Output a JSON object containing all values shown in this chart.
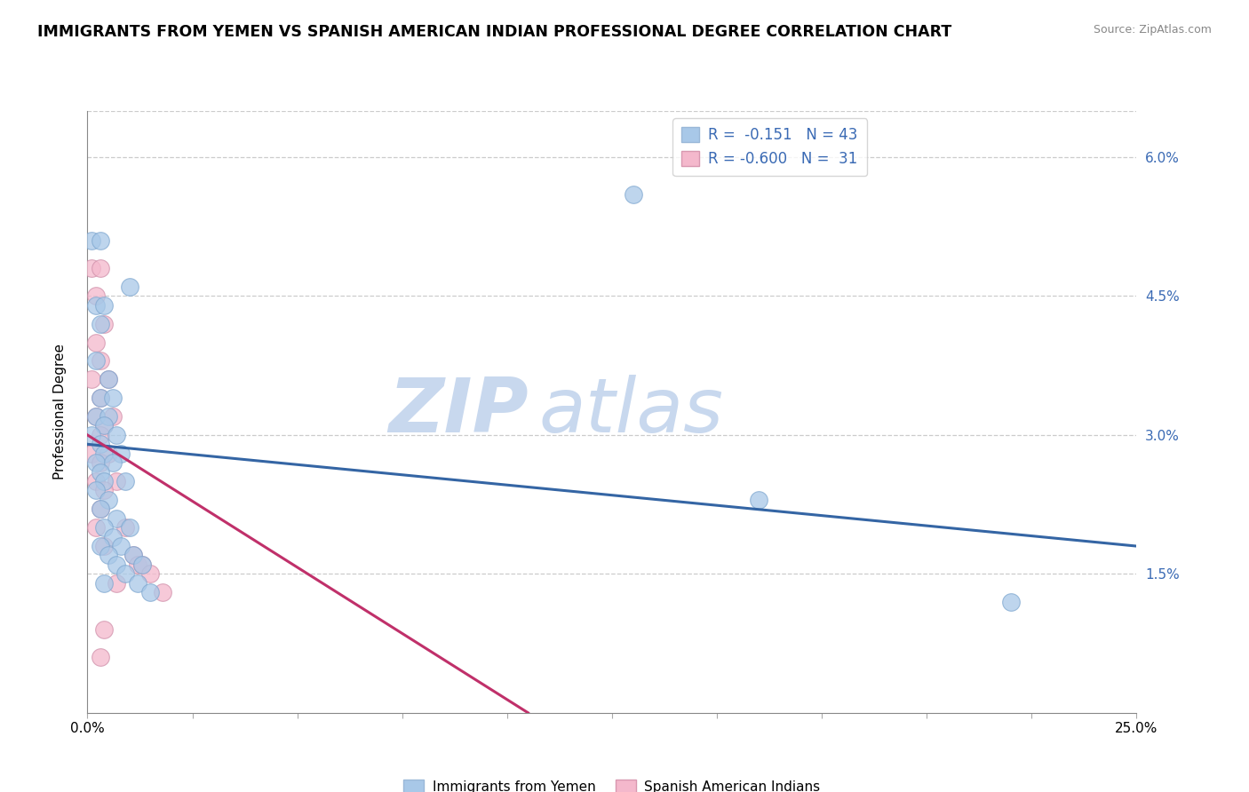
{
  "title": "IMMIGRANTS FROM YEMEN VS SPANISH AMERICAN INDIAN PROFESSIONAL DEGREE CORRELATION CHART",
  "source": "Source: ZipAtlas.com",
  "ylabel": "Professional Degree",
  "xlim": [
    0.0,
    0.25
  ],
  "ylim": [
    0.0,
    0.065
  ],
  "xticks": [
    0.0,
    0.025,
    0.05,
    0.075,
    0.1,
    0.125,
    0.15,
    0.175,
    0.2,
    0.225,
    0.25
  ],
  "yticks_right": [
    0.0,
    0.015,
    0.03,
    0.045,
    0.06
  ],
  "legend_r1": "R =  -0.151",
  "legend_n1": "N = 43",
  "legend_r2": "R = -0.600",
  "legend_n2": "N =  31",
  "blue_color": "#a8c8e8",
  "pink_color": "#f4b8cc",
  "blue_line_color": "#3465a4",
  "pink_line_color": "#c0306a",
  "watermark_zip": "ZIP",
  "watermark_atlas": "atlas",
  "scatter_blue": [
    [
      0.001,
      0.051
    ],
    [
      0.003,
      0.051
    ],
    [
      0.01,
      0.046
    ],
    [
      0.002,
      0.044
    ],
    [
      0.004,
      0.044
    ],
    [
      0.003,
      0.042
    ],
    [
      0.002,
      0.038
    ],
    [
      0.005,
      0.036
    ],
    [
      0.003,
      0.034
    ],
    [
      0.006,
      0.034
    ],
    [
      0.002,
      0.032
    ],
    [
      0.005,
      0.032
    ],
    [
      0.004,
      0.031
    ],
    [
      0.001,
      0.03
    ],
    [
      0.007,
      0.03
    ],
    [
      0.003,
      0.029
    ],
    [
      0.004,
      0.028
    ],
    [
      0.008,
      0.028
    ],
    [
      0.002,
      0.027
    ],
    [
      0.006,
      0.027
    ],
    [
      0.003,
      0.026
    ],
    [
      0.004,
      0.025
    ],
    [
      0.009,
      0.025
    ],
    [
      0.002,
      0.024
    ],
    [
      0.005,
      0.023
    ],
    [
      0.003,
      0.022
    ],
    [
      0.007,
      0.021
    ],
    [
      0.004,
      0.02
    ],
    [
      0.01,
      0.02
    ],
    [
      0.006,
      0.019
    ],
    [
      0.003,
      0.018
    ],
    [
      0.008,
      0.018
    ],
    [
      0.005,
      0.017
    ],
    [
      0.011,
      0.017
    ],
    [
      0.007,
      0.016
    ],
    [
      0.013,
      0.016
    ],
    [
      0.009,
      0.015
    ],
    [
      0.004,
      0.014
    ],
    [
      0.012,
      0.014
    ],
    [
      0.015,
      0.013
    ],
    [
      0.13,
      0.056
    ],
    [
      0.16,
      0.023
    ],
    [
      0.22,
      0.012
    ]
  ],
  "scatter_pink": [
    [
      0.001,
      0.048
    ],
    [
      0.003,
      0.048
    ],
    [
      0.002,
      0.045
    ],
    [
      0.004,
      0.042
    ],
    [
      0.002,
      0.04
    ],
    [
      0.003,
      0.038
    ],
    [
      0.001,
      0.036
    ],
    [
      0.005,
      0.036
    ],
    [
      0.003,
      0.034
    ],
    [
      0.002,
      0.032
    ],
    [
      0.006,
      0.032
    ],
    [
      0.004,
      0.031
    ],
    [
      0.003,
      0.03
    ],
    [
      0.001,
      0.028
    ],
    [
      0.005,
      0.028
    ],
    [
      0.003,
      0.027
    ],
    [
      0.002,
      0.025
    ],
    [
      0.007,
      0.025
    ],
    [
      0.004,
      0.024
    ],
    [
      0.003,
      0.022
    ],
    [
      0.002,
      0.02
    ],
    [
      0.009,
      0.02
    ],
    [
      0.004,
      0.018
    ],
    [
      0.011,
      0.017
    ],
    [
      0.012,
      0.016
    ],
    [
      0.013,
      0.016
    ],
    [
      0.015,
      0.015
    ],
    [
      0.007,
      0.014
    ],
    [
      0.018,
      0.013
    ],
    [
      0.004,
      0.009
    ],
    [
      0.003,
      0.006
    ]
  ],
  "blue_trendline": [
    [
      0.0,
      0.029
    ],
    [
      0.25,
      0.018
    ]
  ],
  "pink_trendline": [
    [
      0.0,
      0.03
    ],
    [
      0.105,
      0.0
    ]
  ]
}
